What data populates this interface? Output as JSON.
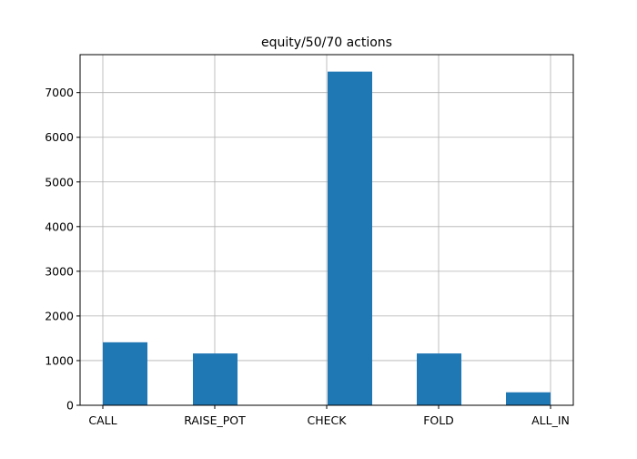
{
  "chart_data": {
    "type": "bar",
    "title": "equity/50/70 actions",
    "xlabel": "",
    "ylabel": "",
    "categories": [
      "CALL",
      "RAISE_POT",
      "CHECK",
      "FOLD",
      "ALL_IN"
    ],
    "values": [
      1410,
      1160,
      7470,
      1160,
      290
    ],
    "y_ticks": [
      0,
      1000,
      2000,
      3000,
      4000,
      5000,
      6000,
      7000
    ],
    "ylim": [
      0,
      7850
    ],
    "grid": true,
    "bar_color": "#1f77b4"
  }
}
